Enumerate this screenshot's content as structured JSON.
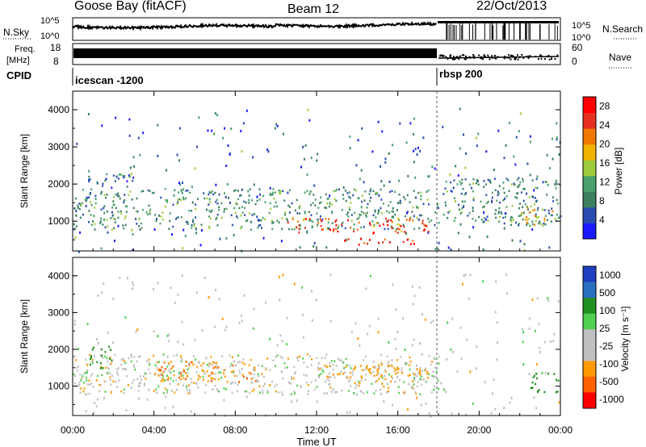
{
  "header": {
    "station": "Goose Bay (fitACF)",
    "beam": "Beam 12",
    "date": "22/Oct/2013"
  },
  "top_panels": {
    "nsky": {
      "label": "N.Sky",
      "ticks": [
        "10^5",
        "10^0"
      ]
    },
    "nsearch": {
      "label": "N.Search",
      "ticks": [
        "10^5",
        "10^0"
      ]
    },
    "freq": {
      "label_line1": "Freq.",
      "label_line2": "[MHz]",
      "ticks": [
        "18",
        "8"
      ]
    },
    "nave": {
      "label": "Nave",
      "ticks": [
        "60",
        "0"
      ]
    },
    "cpid": {
      "label": "CPID",
      "modes": [
        {
          "name": "icescan -1200",
          "start_hour": 0,
          "end_hour": 18
        },
        {
          "name": "rbsp 200",
          "start_hour": 18,
          "end_hour": 24
        }
      ]
    }
  },
  "colors": {
    "power_scale": [
      "#1a1aff",
      "#2a4cb0",
      "#3a7f5f",
      "#4aa06a",
      "#9ccc3c",
      "#f0b400",
      "#f07800",
      "#e83020",
      "#ff0000"
    ],
    "velocity_scale": [
      "#ff0000",
      "#ff6000",
      "#ff9a00",
      "#c0c0c0",
      "#c0c0c0",
      "#50d050",
      "#209020",
      "#2a70c0",
      "#2040c0"
    ]
  },
  "chart_data": [
    {
      "type": "heatmap",
      "title": "",
      "xlabel": "Time UT",
      "ylabel": "Slant Range [km]",
      "x_ticks": [
        "00:00",
        "04:00",
        "08:00",
        "12:00",
        "16:00",
        "20:00",
        "00:00"
      ],
      "xlim": [
        0,
        24
      ],
      "y_ticks": [
        "1000",
        "2000",
        "3000",
        "4000"
      ],
      "ylim": [
        200,
        4500
      ],
      "colorbar_label": "Power [dB]",
      "colorbar_ticks": [
        "4",
        "8",
        "12",
        "16",
        "20",
        "24",
        "28"
      ],
      "colorbar_range": [
        0,
        30
      ],
      "features": [
        {
          "t0": 0.0,
          "t1": 18.0,
          "r0": 800,
          "r1": 1900,
          "level": 10
        },
        {
          "t0": 10.5,
          "t1": 17.5,
          "r0": 700,
          "r1": 1100,
          "level": 24
        },
        {
          "t0": 13.0,
          "t1": 17.0,
          "r0": 380,
          "r1": 560,
          "level": 27
        },
        {
          "t0": 0.5,
          "t1": 3.0,
          "r0": 1900,
          "r1": 2300,
          "level": 7
        },
        {
          "t0": 18.2,
          "t1": 24.0,
          "r0": 900,
          "r1": 2200,
          "level": 9
        },
        {
          "t0": 22.0,
          "t1": 23.8,
          "r0": 900,
          "r1": 1400,
          "level": 18
        }
      ]
    },
    {
      "type": "heatmap",
      "title": "",
      "xlabel": "Time UT",
      "ylabel": "Slant Range [km]",
      "x_ticks": [
        "00:00",
        "04:00",
        "08:00",
        "12:00",
        "16:00",
        "20:00",
        "00:00"
      ],
      "xlim": [
        0,
        24
      ],
      "y_ticks": [
        "1000",
        "2000",
        "3000",
        "4000"
      ],
      "ylim": [
        200,
        4500
      ],
      "colorbar_label": "Velocity [m s⁻¹]",
      "colorbar_ticks": [
        "1000",
        "500",
        "100",
        "25",
        "-25",
        "-100",
        "-500",
        "-1000"
      ],
      "colorbar_range": [
        -1000,
        1000
      ],
      "features": [
        {
          "t0": 0.0,
          "t1": 18.0,
          "r0": 800,
          "r1": 1900,
          "level": 0
        },
        {
          "t0": 4.0,
          "t1": 9.0,
          "r0": 1100,
          "r1": 1700,
          "level": -80
        },
        {
          "t0": 12.0,
          "t1": 17.5,
          "r0": 1200,
          "r1": 1600,
          "level": -60
        },
        {
          "t0": 0.8,
          "t1": 2.0,
          "r0": 1500,
          "r1": 2100,
          "level": 150
        },
        {
          "t0": 22.5,
          "t1": 23.9,
          "r0": 850,
          "r1": 1400,
          "level": 300
        }
      ]
    }
  ]
}
